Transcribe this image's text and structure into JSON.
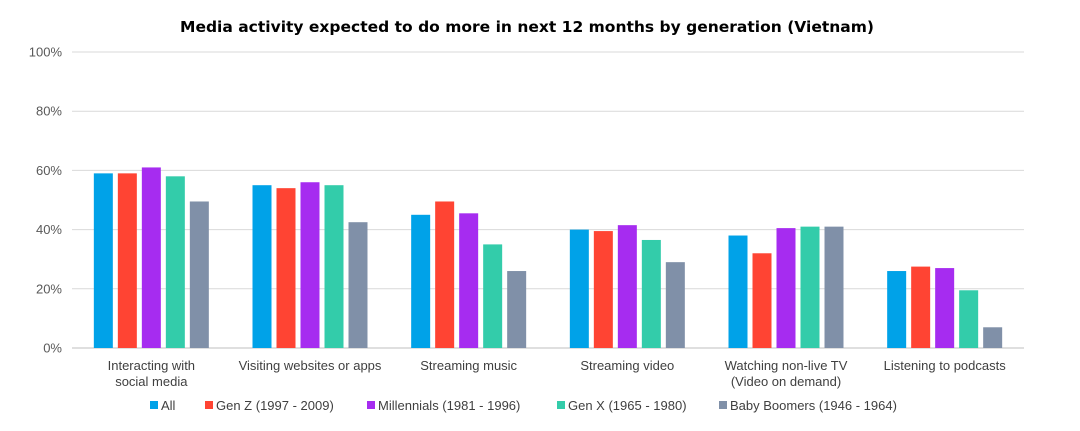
{
  "chart_data": {
    "type": "bar",
    "title": "Media activity expected to do more in next 12 months by generation (Vietnam)",
    "xlabel": "",
    "ylabel": "",
    "ylim": [
      0,
      100
    ],
    "yticks": [
      "0%",
      "20%",
      "40%",
      "60%",
      "80%",
      "100%"
    ],
    "y_tick_values": [
      0,
      20,
      40,
      60,
      80,
      100
    ],
    "grid": true,
    "legend_position": "bottom",
    "categories": [
      [
        "Interacting with",
        "social media"
      ],
      [
        "Visiting websites or apps"
      ],
      [
        "Streaming music"
      ],
      [
        "Streaming video"
      ],
      [
        "Watching non-live TV",
        "(Video on demand)"
      ],
      [
        "Listening to podcasts"
      ]
    ],
    "series": [
      {
        "name": "All",
        "color": "#00a2e8",
        "values": [
          59,
          55,
          45,
          40,
          38,
          26
        ]
      },
      {
        "name": "Gen Z (1997 - 2009)",
        "color": "#ff4433",
        "values": [
          59,
          54,
          49.5,
          39.5,
          32,
          27.5
        ]
      },
      {
        "name": "Millennials (1981 - 1996)",
        "color": "#a62cf0",
        "values": [
          61,
          56,
          45.5,
          41.5,
          40.5,
          27
        ]
      },
      {
        "name": "Gen X (1965 - 1980)",
        "color": "#33ccaa",
        "values": [
          58,
          55,
          35,
          36.5,
          41,
          19.5
        ]
      },
      {
        "name": "Baby Boomers (1946 - 1964)",
        "color": "#8090a8",
        "values": [
          49.5,
          42.5,
          26,
          29,
          41,
          7
        ]
      }
    ]
  }
}
